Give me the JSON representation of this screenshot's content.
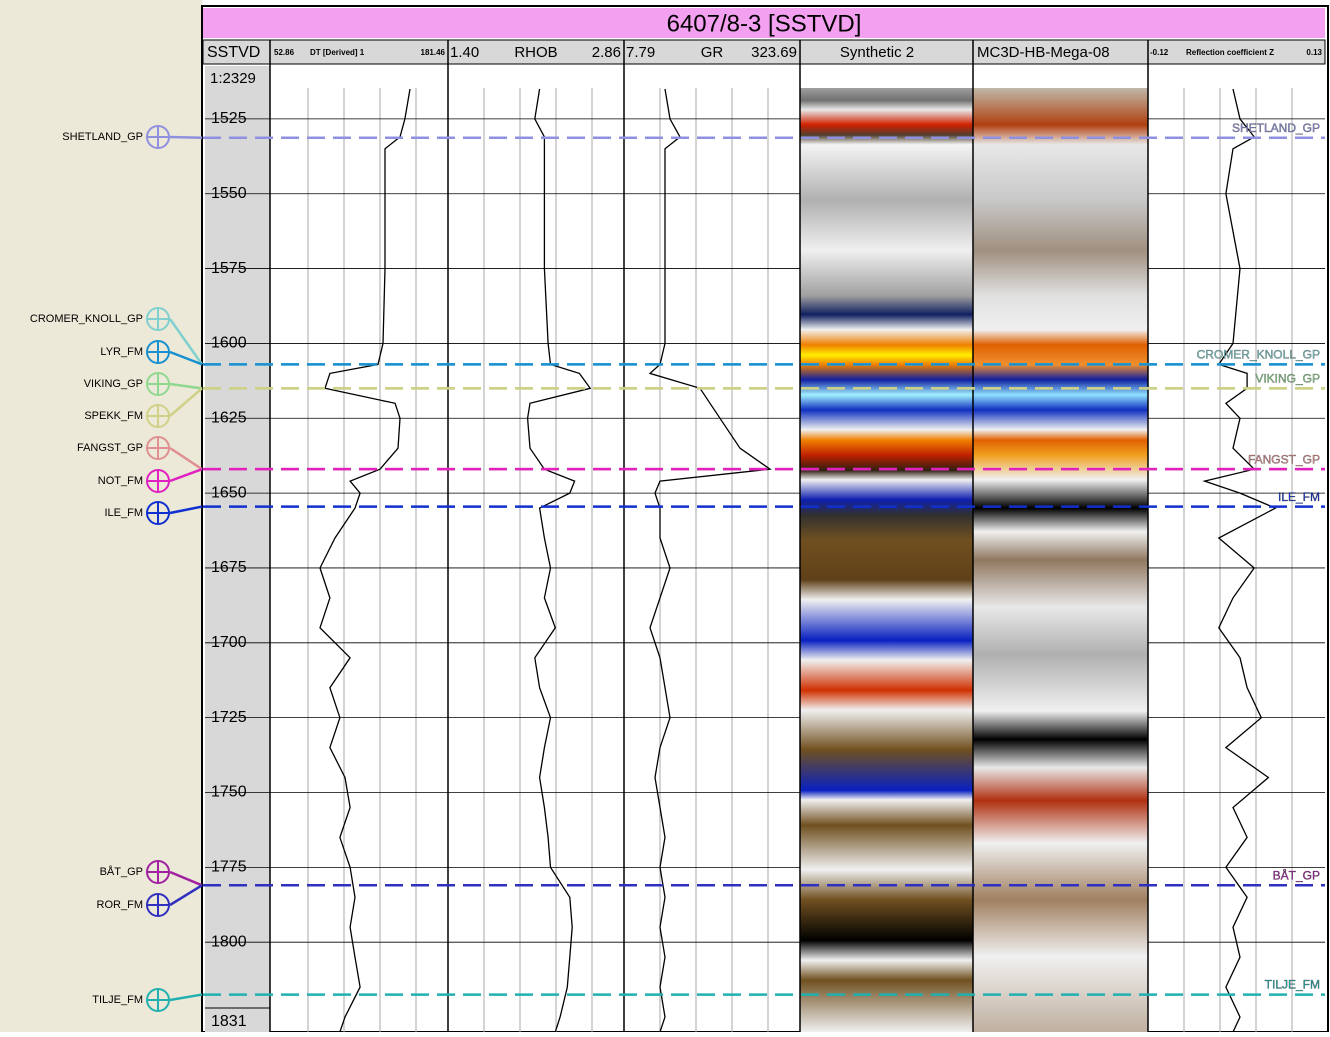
{
  "title": "6407/8-3 [SSTVD]",
  "depth_track": {
    "label": "SSTVD",
    "scale": "1:2329",
    "range": [
      1507,
      1830
    ],
    "ticks": [
      1525,
      1550,
      1575,
      1600,
      1625,
      1650,
      1675,
      1700,
      1725,
      1750,
      1775,
      1800
    ],
    "bottom": 1831
  },
  "depths": [
    1515,
    1525,
    1531,
    1535,
    1550,
    1575,
    1600,
    1607,
    1610,
    1615,
    1620,
    1625,
    1635,
    1642,
    1646,
    1650,
    1655,
    1665,
    1675,
    1685,
    1695,
    1705,
    1715,
    1725,
    1735,
    1745,
    1755,
    1765,
    1775,
    1785,
    1795,
    1805,
    1815,
    1825,
    1830
  ],
  "tracks": [
    {
      "min": 52.86,
      "name": "DT [Derived] 1",
      "max": 181.46,
      "values": [
        153.7,
        150.0,
        146.4,
        135.4,
        135.4,
        135.4,
        134.0,
        130.3,
        95.2,
        91.6,
        142.8,
        146.4,
        144.9,
        131.8,
        109.9,
        117.2,
        113.5,
        98.9,
        87.9,
        95.2,
        87.9,
        109.9,
        95.2,
        102.5,
        95.2,
        106.2,
        109.9,
        102.5,
        109.9,
        113.5,
        109.9,
        113.5,
        117.2,
        106.2,
        102.5
      ]
    },
    {
      "min": {
        "value": 1.4,
        "label": "1.40"
      },
      "name": "RHOB",
      "max": 2.86,
      "values": [
        2.16,
        2.12,
        2.2,
        2.2,
        2.2,
        2.2,
        2.23,
        2.25,
        2.49,
        2.58,
        2.08,
        2.06,
        2.08,
        2.2,
        2.45,
        2.41,
        2.16,
        2.2,
        2.25,
        2.2,
        2.29,
        2.12,
        2.16,
        2.25,
        2.2,
        2.16,
        2.2,
        2.23,
        2.25,
        2.41,
        2.43,
        2.41,
        2.39,
        2.33,
        2.29
      ]
    },
    {
      "min": 7.79,
      "name": "GR",
      "max": 323.69,
      "values": [
        81.4,
        90.4,
        108.3,
        81.4,
        81.4,
        81.4,
        81.4,
        72.4,
        54.5,
        144.2,
        162.2,
        180.1,
        216.0,
        269.9,
        72.4,
        63.4,
        72.4,
        72.4,
        90.4,
        72.4,
        54.5,
        72.4,
        81.4,
        90.4,
        72.4,
        63.4,
        72.4,
        81.4,
        72.4,
        81.4,
        72.4,
        81.4,
        72.4,
        81.4,
        72.4
      ]
    },
    {
      "min": -0.12,
      "name": "Reflection coefficient Z",
      "max": 0.13,
      "values": [
        0.0,
        0.01,
        0.03,
        0.0,
        -0.01,
        0.01,
        0.0,
        -0.02,
        0.02,
        0.02,
        -0.01,
        0.01,
        0.0,
        0.03,
        -0.04,
        0.01,
        0.06,
        -0.02,
        0.03,
        0.0,
        -0.02,
        0.01,
        0.02,
        0.04,
        -0.01,
        0.05,
        0.0,
        0.02,
        -0.01,
        0.02,
        0.0,
        0.01,
        -0.01,
        0.01,
        0.0
      ]
    }
  ],
  "synthetic": "Synthetic 2",
  "seismic": "MC3D-HB-Mega-08",
  "tops": [
    {
      "name": "SHETLAND_GP",
      "depth": 1531.3,
      "color": "#9090e0"
    },
    {
      "name": "CROMER_KNOLL_GP",
      "depth": 1607,
      "color": "#80d0d0"
    },
    {
      "name": "LYR_FM",
      "depth": 1607,
      "color": "#1890d0"
    },
    {
      "name": "VIKING_GP",
      "depth": 1615,
      "color": "#90d890"
    },
    {
      "name": "SPEKK_FM",
      "depth": 1615,
      "color": "#d0d088"
    },
    {
      "name": "FANGST_GP",
      "depth": 1642,
      "color": "#e09090"
    },
    {
      "name": "NOT_FM",
      "depth": 1642,
      "color": "#e020c0"
    },
    {
      "name": "ILE_FM",
      "depth": 1654.5,
      "color": "#1030d0"
    },
    {
      "name": "BÅT_GP",
      "depth": 1781,
      "color": "#a020a0"
    },
    {
      "name": "ROR_FM",
      "depth": 1781,
      "color": "#3030c0"
    },
    {
      "name": "TILJE_FM",
      "depth": 1817.5,
      "color": "#20b0b0"
    }
  ]
}
